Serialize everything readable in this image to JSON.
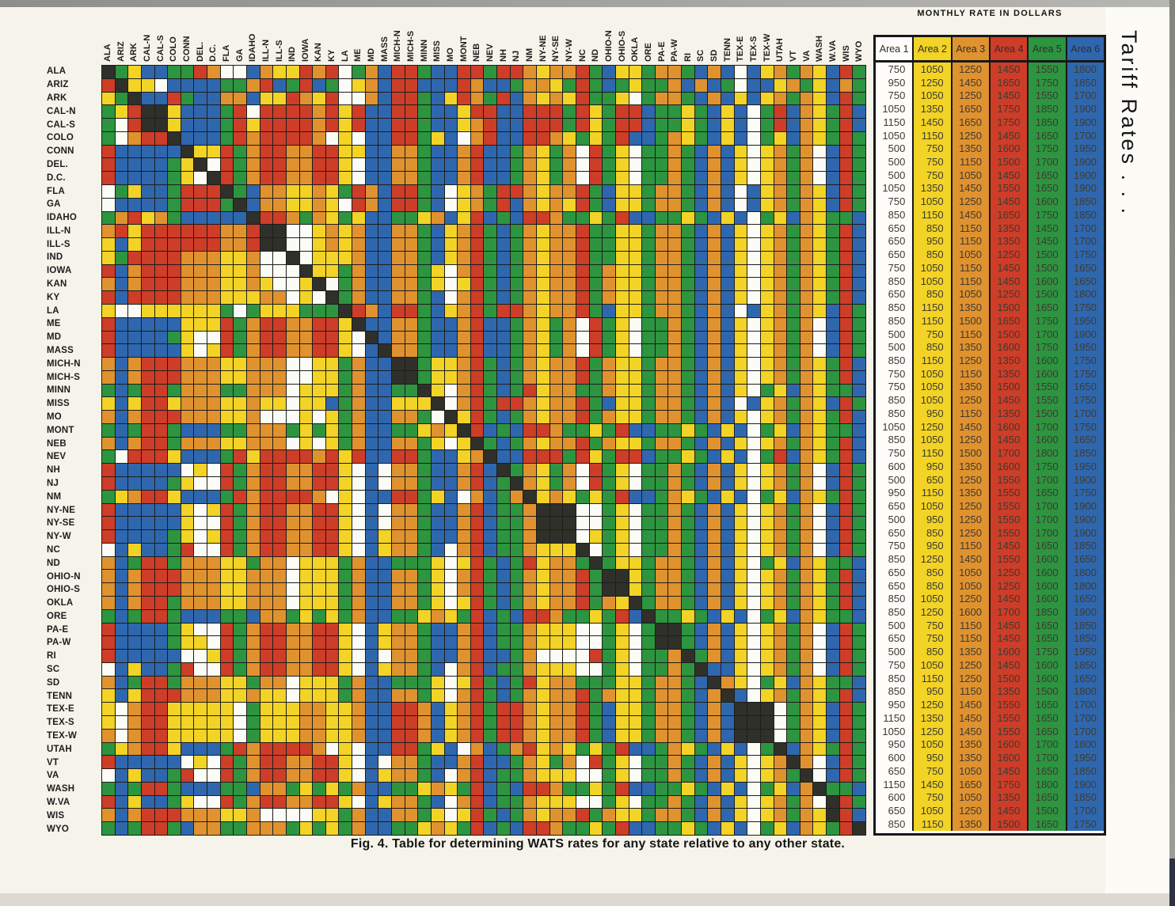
{
  "page": {
    "caption": "Fig. 4. Table for determining WATS rates for any state relative to any other state.",
    "side_title": "Tariff Rates . . ."
  },
  "chart_data": {
    "type": "heatmap",
    "title": "Fig. 4. Table for determining WATS rates for any state relative to any other state.",
    "states": [
      "ALA",
      "ARIZ",
      "ARK",
      "CAL-N",
      "CAL-S",
      "COLO",
      "CONN",
      "DEL.",
      "D.C.",
      "FLA",
      "GA",
      "IDAHO",
      "ILL-N",
      "ILL-S",
      "IND",
      "IOWA",
      "KAN",
      "KY",
      "LA",
      "ME",
      "MD",
      "MASS",
      "MICH-N",
      "MICH-S",
      "MINN",
      "MISS",
      "MO",
      "MONT",
      "NEB",
      "NEV",
      "NH",
      "NJ",
      "NM",
      "NY-NE",
      "NY-SE",
      "NY-W",
      "NC",
      "ND",
      "OHIO-N",
      "OHIO-S",
      "OKLA",
      "ORE",
      "PA-E",
      "PA-W",
      "RI",
      "SC",
      "SD",
      "TENN",
      "TEX-E",
      "TEX-S",
      "TEX-W",
      "UTAH",
      "VT",
      "VA",
      "WASH",
      "W.VA",
      "WIS",
      "WYO"
    ],
    "legend": {
      "W": "Area 1",
      "Y": "Area 2",
      "O": "Area 3",
      "R": "Area 4",
      "G": "Area 5",
      "B": "Area 6",
      "K": "same-state diagonal (black)"
    },
    "colors": {
      "W": "#fcfcf7",
      "Y": "#f2d326",
      "O": "#e0922f",
      "R": "#cd3d28",
      "G": "#2d9440",
      "B": "#2f67ae",
      "K": "#30302b"
    },
    "matrix_rows": [
      "KGYBBGGROWWBOYYRORWGOBRRGBBRRGRROYOORGBYYGOOGBOBWBYOGOYBRG",
      "RKYYWBBBBGGORBGRBGWYOBRRBBBROBBGOOYGRGBGYGGOBOBGWBBYOGYBOG",
      "YGKBBRGBBOOBYYROYRWWOBRRGBYROGRBOYOYRGGYWGOOGBOBYBYOGOYBRG",
      "GYRKKYBBBGRWRRRRORYRBBRRGBBYRRBBRRRGRYGRRBGGYGBYBWGRBOYGRB",
      "GWRKKYBBBGRYRRRRORYRBBRRGBBYORBBRRRGRYGRRBGGYGBYBWGRBOYGRB",
      "GWORRKBBBGRORRRROWYWBBRRGYBWORBBRROYGYGRBBGOYGBYBWGYBOYGRG",
      "RBBBBBKYYRGORROORRYYBBOOGBBORBBGOYGOWRGYWGGOGBOBYWYOGOWBRG",
      "RBBBBGYKWRGORROORRYWBBOOGBBORBBGOYGOWRGYWGGOGBOBYWYOGOWBRG",
      "RBBBBGYWKRGORROORRYWBBOOGBBORBBGOYGOWRGYWGGOGBOBYWYOGOWBRG",
      "WGYBBGRRRKGBOOYYOYGROBRRGBWYOGRROYOORGBYYGOOGBOBWBYOGOYBRG",
      "WBBBBGRRRGKBOOYYOYWROBRRGBWYOGRBOYOYRGBYYGOOGBOBWBYOGOYBRG",
      "GORYOGBBBBBKRROGOYGYBBGGYOBYRBGBRROGGYGRBBGGYGBYBWGYBOYGGB",
      "ORYRRRRRROORKKWWYOYOBBOOGBYORGBGOYOORGGYYGOOGBOBYWYOGOYGRB",
      "YBYRRRRRROORKKWWYOYOBBOOGBYORGBGOYOORGGYYGOOGBOBYWYOGOYGRB",
      "YGRRRROOOYYOWWKWYYYOBBOOGBYORGBGOYOORGGYYGOOGBOBYWYOGOYGRB",
      "RBORRROOOYYOWWWKYYGOBBOOGYWORGBGOYOORGOYYGOOGBOBYWYOGOYGRB",
      "OBORRROOOYYOYWWYKWGOBBOOGYWYRGBGOYOORGOYYGOOGBOBYWYOGOYGRB",
      "RBRRRROOOYYYOOWYWKGOBBOOGBWORGBGOYOORGOYYGOOGBOBYWYOGOYGRB",
      "YWWYYYYYYGWGYYYGGGKROBRRGBYORGRROYOORGBYYGOOGBOBWBYOGOYBRG",
      "RBBBBBYYYRGORROORRYKBBOOGBBORBBGOYGOWRGYWGGOGBOBYWYOGOWBRG",
      "RBBBBGYWWRGORROORRYWKBOOGBBORBBGOYGOWRGYWGGOGBOBYWYOGOWBRG",
      "RBBBBBYWYRGORROORRYWBKOOGBBORBBGOYGOWRGYWGGOGBOBYWYOGOWBRG",
      "OBORRROOOYYOOOWWYYGOBBKKGYYORGBGOYOORGOYYGOOGBOBYWYOGOYGRB",
      "OBORRROOOYYOOOWWYYGOBBKKGYYORGBGOYOORGOYYGOOGBOBYWYOGOYGRB",
      "GBGRRGOOOGGOOOWYYYGOBBGGKYWORGBGRYOOGGOYYGOOGBOBYWGYBOYGGB",
      "YBYRRYOOOYYOYYWYYBGOBBYYYKWORGRROYOORGBYYGOOGBOBWBYOGOYBRG",
      "OBORRROOOYYOWWWYWYGOBBOOGWKYRGBGOYOORGOYYGOOGBOBYWYOGOYGRB",
      "GBGRRGBBBGGOOOGYGYGOBBGGYOYKRBGBRROGGYGRBBGGYGBYBWGYBOYGGB",
      "OBORRGOOOYYOOOWYWYGOBBOOGYWYKGBGOYOORGOYYGOOGBOBYWYOGOYGRB",
      "GWRRRYBBBGRYRRRRORYRBBRRGBBYOKBBRRRGRYGRRBGGYGBYBWGRBOYGRB",
      "RBBBBBWYWRGORROORRYWBWOOGBBORBKGOYGOWRGYWGGOGBOBYWYOGOWBRG",
      "RBBBBGYWWRGORROORRYWBWOOGBBORBGKOYGOWRGYWGGOGBOBYWYOGOWBRG",
      "GYORRYBBBGRORRRROWYWBBRRGYBWOBGOKYOYGYGRBBGOYGBYBWGYBOYGRG",
      "RBBBBBYWYRGORROORRYWBWOOGBBORBGGOKKKWWGYWGGOGBOBYWYOGOWBRG",
      "RBBBBBYWWRGORROORRYWBWOOGBBORBGGOKKKWWGYWGGOGBOBYWYOGOWBRG",
      "RBBBBGYWYRGORROORRYWBYOOGBBORBGGOKKKWYGYWGGOGBOBYWYOGOWBRG",
      "WBYBBGRWWRGORROORRYWBYOOGBWORBGGOYYYKWGYWGGOGBOBYWYOGOWBRG",
      "OBGRRGOOOYYGOOWYYYGOBBGGGYWYRGBGRYOOGKGYYGOOGBOBYWGYBOYGGB",
      "OBORRROOOYYOOOWYYYGOBBOOGYWORGBGOYOORGKKYGOOGBOBYWYOGOYGRB",
      "OBORRROOOYYOOOWYYYGOBBOOGYWORGBGOYOORGKKYGOOGBOBYWYOGOYGRB",
      "OBORRGOOOYYOOOWYYYGOBBOOGYWYRGBGOYOORGOYKGOOGBOBYWYOGOYGRB",
      "GBGRRGBBBGGBOOGYGYGOBBGGYOYGRBGBRROGGYGRBKGGYGBYBWGYBOYGGB",
      "RBBBBGYWWRGORROORRYWBYOOGBBORBGGOYYYWWGYWGKKGBOBYWYOGOWBRG",
      "RBBBBGYYWRGORROORRYWBYOOGBBORBGGOYYYWWGYWGKKGBOBYWYOGOWBRG",
      "RBBBBBWWYRGORROORRYWBWOOGBBORBBGOWWWWRGYWGGOKGOBYWYOGOWBRG",
      "WBYBBGRWWRGORROORRYWBYOOGBWORBGGOYYYWWGYWGGOGKBBYWYOGOWBRG",
      "OBGRRGOOOYYGOOWYYYGOBBGGGYWYRGBGRYOOGGGYYGOOGBKOYWGYBOYGGB",
      "YBYRRROOOYYOYYWYYYGOBBOOGYWORGBGOYOORGOYYGOOGBOKBWYOGOYGRB",
      "YWORRYYYYYWGYYYOOYYOBBRROBYORGRROYOORGBYYGOOGBOBKKKWGOYBRG",
      "YWORRYYYYYWGYYYOOYYOBBRROBYORGRROYOORGBYYGOOGBOBKKKWGOYBRG",
      "OWORRYYYYYWGYYYOOYYOBBRROBYORGRROYOORGBYYGOOGBOBKKKWGOYBRG",
      "GYORRYBBBGRORRRROWYWBBRRGYBWOBGORYOYGYGRBBGOYGBYBWGKBOYGRG",
      "RBBBBBWYWRGORROORRYWBWOOGBBORBBGOYGOWRGYWGGOGBOBYWYOKOWBRG",
      "WBYBBGRWWRGORROORRYWBYOOGBWORBGGOYYYWWGYWGGOGBOBYWYOGKWBRG",
      "GBGRRGBBBGGBOOGYGYGOBBGGYOYGRBGBRROGGYGRBBGGYGBYBWGYBOKGGB",
      "RBYBBGYWWRGORROORRYWBYOOGBWORBGGOYYYWWGYWGGOGBOBYWYOGOWKRG",
      "OBORRROOOYYOWWWWYYGOBBOOGYWYRGBGOYOORGOYYGOOGBOBYWYOGOYKRB",
      "GBGRRGBOOGGOOOGYGYGOBBGGYOYGRBGBRROGGYGRBBGGYGBYBWGYBOYGRK"
    ],
    "rate_table": {
      "title": "MONTHLY RATE IN DOLLARS",
      "columns": [
        "Area 1",
        "Area 2",
        "Area 3",
        "Area 4",
        "Area 5",
        "Area 6"
      ],
      "column_colors": [
        "#fdfcf8",
        "#f2d326",
        "#e0922f",
        "#cd3d28",
        "#2d9440",
        "#2f67ae"
      ],
      "rows": [
        [
          750,
          1050,
          1250,
          1450,
          1550,
          1800
        ],
        [
          950,
          1250,
          1450,
          1650,
          1750,
          1850
        ],
        [
          750,
          1050,
          1250,
          1450,
          1550,
          1700
        ],
        [
          1050,
          1350,
          1650,
          1750,
          1850,
          1900
        ],
        [
          1150,
          1450,
          1650,
          1750,
          1850,
          1900
        ],
        [
          1050,
          1150,
          1250,
          1450,
          1650,
          1700
        ],
        [
          500,
          750,
          1350,
          1600,
          1750,
          1950
        ],
        [
          500,
          750,
          1150,
          1500,
          1700,
          1900
        ],
        [
          500,
          750,
          1050,
          1450,
          1650,
          1900
        ],
        [
          1050,
          1350,
          1450,
          1550,
          1650,
          1900
        ],
        [
          750,
          1050,
          1250,
          1450,
          1600,
          1850
        ],
        [
          850,
          1150,
          1450,
          1650,
          1750,
          1850
        ],
        [
          650,
          850,
          1150,
          1350,
          1450,
          1700
        ],
        [
          650,
          950,
          1150,
          1350,
          1450,
          1700
        ],
        [
          650,
          850,
          1050,
          1250,
          1500,
          1750
        ],
        [
          750,
          1050,
          1150,
          1450,
          1500,
          1650
        ],
        [
          850,
          1050,
          1150,
          1450,
          1600,
          1650
        ],
        [
          650,
          850,
          1050,
          1250,
          1500,
          1800
        ],
        [
          850,
          1150,
          1350,
          1500,
          1650,
          1750
        ],
        [
          850,
          1150,
          1500,
          1650,
          1750,
          1950
        ],
        [
          500,
          750,
          1150,
          1500,
          1700,
          1900
        ],
        [
          500,
          850,
          1350,
          1600,
          1750,
          1950
        ],
        [
          850,
          1150,
          1250,
          1350,
          1600,
          1750
        ],
        [
          750,
          1050,
          1150,
          1350,
          1600,
          1750
        ],
        [
          750,
          1050,
          1350,
          1500,
          1550,
          1650
        ],
        [
          850,
          1050,
          1250,
          1450,
          1550,
          1750
        ],
        [
          850,
          950,
          1150,
          1350,
          1500,
          1700
        ],
        [
          1050,
          1250,
          1450,
          1600,
          1700,
          1750
        ],
        [
          850,
          1050,
          1250,
          1450,
          1600,
          1650
        ],
        [
          750,
          1150,
          1500,
          1700,
          1800,
          1850
        ],
        [
          600,
          950,
          1350,
          1600,
          1750,
          1950
        ],
        [
          500,
          650,
          1250,
          1550,
          1700,
          1900
        ],
        [
          950,
          1150,
          1350,
          1550,
          1650,
          1750
        ],
        [
          650,
          1050,
          1250,
          1550,
          1700,
          1900
        ],
        [
          500,
          950,
          1250,
          1550,
          1700,
          1900
        ],
        [
          650,
          850,
          1250,
          1550,
          1700,
          1900
        ],
        [
          750,
          950,
          1150,
          1450,
          1650,
          1850
        ],
        [
          850,
          1250,
          1450,
          1550,
          1600,
          1650
        ],
        [
          650,
          850,
          1050,
          1250,
          1600,
          1800
        ],
        [
          650,
          850,
          1050,
          1250,
          1600,
          1800
        ],
        [
          850,
          1050,
          1250,
          1450,
          1600,
          1650
        ],
        [
          850,
          1250,
          1600,
          1700,
          1850,
          1900
        ],
        [
          500,
          750,
          1150,
          1450,
          1650,
          1850
        ],
        [
          650,
          750,
          1150,
          1450,
          1650,
          1850
        ],
        [
          500,
          850,
          1350,
          1600,
          1750,
          1950
        ],
        [
          750,
          1050,
          1250,
          1450,
          1600,
          1850
        ],
        [
          850,
          1150,
          1250,
          1500,
          1600,
          1650
        ],
        [
          850,
          950,
          1150,
          1350,
          1500,
          1800
        ],
        [
          950,
          1250,
          1450,
          1550,
          1650,
          1700
        ],
        [
          1150,
          1350,
          1450,
          1550,
          1650,
          1700
        ],
        [
          1050,
          1250,
          1450,
          1550,
          1650,
          1700
        ],
        [
          950,
          1050,
          1350,
          1600,
          1700,
          1800
        ],
        [
          600,
          950,
          1350,
          1600,
          1700,
          1950
        ],
        [
          650,
          750,
          1050,
          1450,
          1650,
          1850
        ],
        [
          1150,
          1450,
          1650,
          1750,
          1800,
          1900
        ],
        [
          600,
          750,
          1050,
          1350,
          1650,
          1850
        ],
        [
          650,
          1050,
          1250,
          1450,
          1500,
          1700
        ],
        [
          850,
          1150,
          1350,
          1500,
          1650,
          1750
        ]
      ]
    }
  }
}
